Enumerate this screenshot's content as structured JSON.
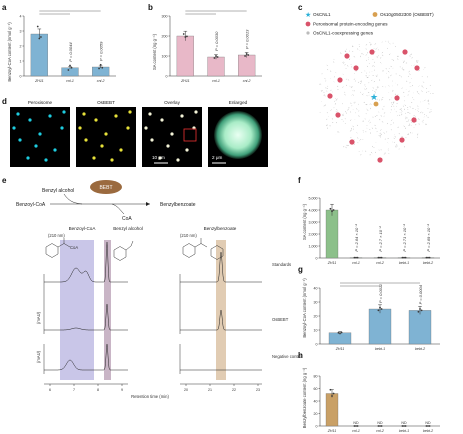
{
  "panel_labels": [
    "a",
    "b",
    "c",
    "d",
    "e",
    "f",
    "g",
    "h"
  ],
  "colors": {
    "blue_bar": "#7fb3d3",
    "pink_bar": "#e8b8c8",
    "green_bar": "#8cc08a",
    "brown_bar": "#c9a066",
    "dot": "#3a3a3a",
    "peroxisome": "#1ecde0",
    "crimson": "#d9536a",
    "lavender": "#b7b3e0",
    "mauve": "#bfa8bc",
    "tan": "#dcc3a6"
  },
  "chart_data": [
    {
      "panel": "a",
      "type": "bar",
      "ylabel": "Benzoyl-CoA content (nmol g⁻¹)",
      "yticks": [
        "0",
        "1",
        "2",
        "3",
        "4"
      ],
      "ylim": [
        0,
        4
      ],
      "categories": [
        "ZH11",
        "cnl-1",
        "cnl-2"
      ],
      "values": [
        2.8,
        0.55,
        0.6
      ],
      "pvalues": [
        "",
        "P = 0.0044",
        "P = 0.0059"
      ],
      "points": [
        [
          3.3,
          2.5,
          2.6
        ],
        [
          0.4,
          0.7,
          0.55
        ],
        [
          0.5,
          0.75,
          0.55
        ]
      ]
    },
    {
      "panel": "b",
      "type": "bar",
      "ylabel": "SA content (ng g⁻¹)",
      "yticks": [
        "0",
        "100",
        "200",
        "300"
      ],
      "ylim": [
        0,
        300
      ],
      "categories": [
        "ZH11",
        "cnl-1",
        "cnl-2"
      ],
      "values": [
        200,
        95,
        105
      ],
      "pvalues": [
        "",
        "P = 0.0030",
        "P = 0.0013"
      ],
      "points": [
        [
          210,
          195,
          198
        ],
        [
          90,
          100,
          95
        ],
        [
          100,
          110,
          105
        ]
      ]
    },
    {
      "panel": "f",
      "type": "bar",
      "ylabel": "SA content (ng g⁻¹)",
      "yticks": [
        "0",
        "1,000",
        "2,000",
        "3,000",
        "4,000",
        "5,000"
      ],
      "ylim": [
        0,
        5000
      ],
      "categories": [
        "ZH11",
        "cnl-1",
        "cnl-2",
        "bebt-1",
        "bebt-2"
      ],
      "values": [
        4000,
        30,
        30,
        30,
        30
      ],
      "pvalues": [
        "",
        "P = 2.64 × 10⁻⁴",
        "P = 2.7 × 10⁻⁴",
        "P = 2.71 × 10⁻⁴",
        "P = 2.69 × 10⁻⁴"
      ],
      "points": [
        [
          4100,
          3900,
          4000
        ],
        [
          30,
          30,
          30
        ],
        [
          30,
          30,
          30
        ],
        [
          30,
          30,
          30
        ],
        [
          30,
          30,
          30
        ]
      ]
    },
    {
      "panel": "g",
      "type": "bar",
      "ylabel": "Benzoyl-CoA content (nmol g⁻¹)",
      "yticks": [
        "0",
        "10",
        "20",
        "30",
        "40"
      ],
      "ylim": [
        0,
        40
      ],
      "categories": [
        "ZH11",
        "bebt-1",
        "bebt-2"
      ],
      "values": [
        8,
        25,
        24
      ],
      "pvalues": [
        "",
        "P = 0.0011",
        "P = 0.0004"
      ],
      "points": [
        [
          8,
          7.5,
          8.2
        ],
        [
          24,
          26,
          25
        ],
        [
          23,
          25,
          24
        ]
      ]
    },
    {
      "panel": "h",
      "type": "bar",
      "ylabel": "Benzylbenzoate content (ng g⁻¹)",
      "yticks": [
        "0",
        "20",
        "40",
        "60",
        "80"
      ],
      "ylim": [
        0,
        80
      ],
      "categories": [
        "ZH11",
        "cnl-1",
        "cnl-2",
        "bebt-1",
        "bebt-2"
      ],
      "values": [
        52,
        0,
        0,
        0,
        0
      ],
      "labels": [
        "",
        "ND",
        "ND",
        "ND",
        "ND"
      ],
      "points": [
        [
          58,
          48,
          52
        ],
        [
          0,
          0,
          0
        ],
        [
          0,
          0,
          0
        ],
        [
          0,
          0,
          0
        ],
        [
          0,
          0,
          0
        ]
      ]
    }
  ],
  "network": {
    "legend": [
      {
        "label": "OsCNL1",
        "shape": "star",
        "color": "#2ab0d8"
      },
      {
        "label": "Os10g0502300 (OsBEBT)",
        "shape": "circle",
        "color": "#d8a050"
      },
      {
        "label": "Peroxisomal protein-encoding genes",
        "shape": "circle",
        "color": "#d9536a"
      },
      {
        "label": "OsCNL1-coexpressing genes",
        "shape": "circle",
        "color": "#bbbbbb"
      }
    ]
  },
  "micro": {
    "labels": [
      "Peroxisome",
      "OsBEBT",
      "Overlay",
      "Enlarged"
    ],
    "scale1": "10 μm",
    "scale2": "2 μm"
  },
  "reaction": {
    "benzyl_alcohol": "Benzyl alcohol",
    "benzoyl_coa": "Benzoyl-CoA",
    "enzyme": "BEBT",
    "coa": "CoA",
    "product": "Benzylbenzoate"
  },
  "hplc": {
    "headers": [
      "Benzoyl-CoA",
      "Benzyl alcohol",
      "Benzylbenzoate"
    ],
    "wavelength": "(210 nm)",
    "rows": [
      "Standards",
      "OsBEBT",
      "Negative control"
    ],
    "yunit": "(mAU)",
    "xticks_left": [
      "6",
      "7",
      "8",
      "9"
    ],
    "xticks_right": [
      "20",
      "21",
      "22",
      "23"
    ],
    "xlabel": "Retention time (min)",
    "coa_label": "CoA"
  }
}
